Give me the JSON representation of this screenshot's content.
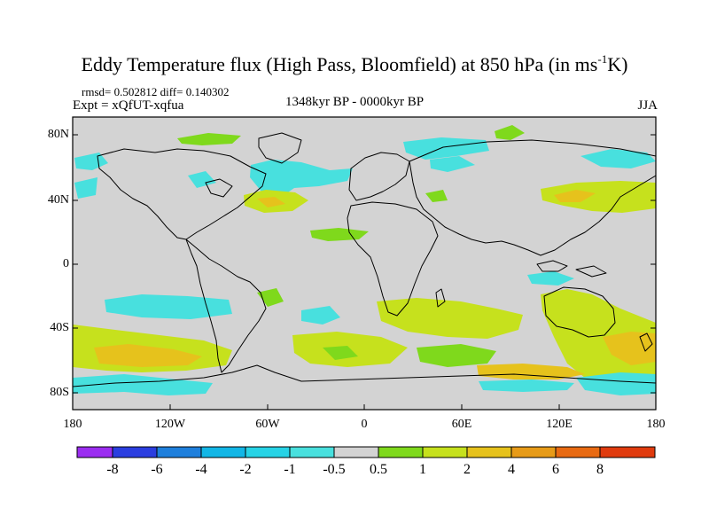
{
  "title": {
    "main_prefix": "Eddy Temperature flux (High Pass, Bloomfield) at 850 hPa (in ms",
    "superscript": "-1",
    "main_suffix": "K)"
  },
  "stats": "rmsd= 0.502812 diff= 0.140302",
  "experiment": "Expt = xQfUT-xqfua",
  "period": "1348kyr BP - 0000kyr BP",
  "season": "JJA",
  "map": {
    "projection": "cylindrical equidistant",
    "lon_range": [
      -180,
      180
    ],
    "lat_range": [
      -90,
      90
    ],
    "background_color": "#d3d3d3",
    "lat_labels": [
      "80N",
      "40N",
      "0",
      "40S",
      "80S"
    ],
    "lon_labels": [
      "180",
      "120W",
      "60W",
      "0",
      "60E",
      "120E",
      "180"
    ]
  },
  "colorbar": {
    "levels": [
      "-8",
      "-6",
      "-4",
      "-2",
      "-1",
      "-0.5",
      "0.5",
      "1",
      "2",
      "4",
      "6",
      "8"
    ],
    "colors": [
      "#9b2df0",
      "#2b3ee0",
      "#1e7fdc",
      "#12b6e6",
      "#27d3e6",
      "#48e0de",
      "#d3d3d3",
      "#7fd91c",
      "#c6e11d",
      "#e6c21c",
      "#e79b18",
      "#e86a12",
      "#e03b0e"
    ]
  }
}
